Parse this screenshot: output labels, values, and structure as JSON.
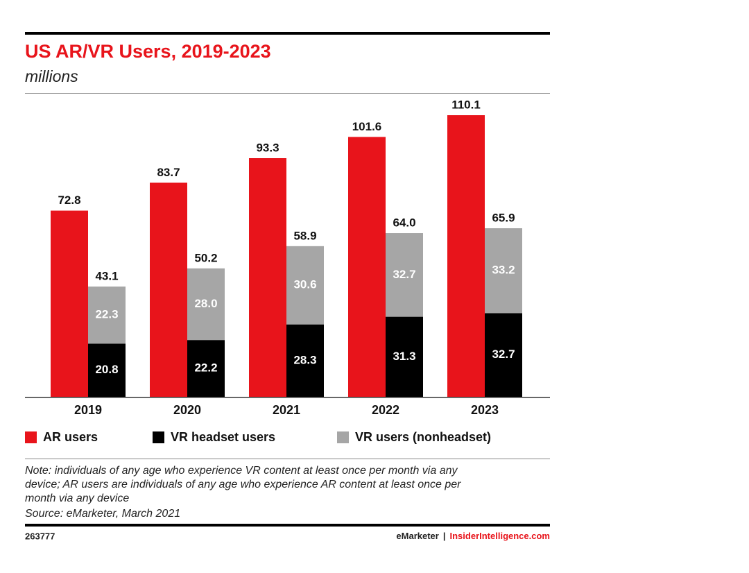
{
  "chart_data": {
    "type": "bar",
    "title": "US AR/VR Users, 2019-2023",
    "subtitle": "millions",
    "categories": [
      "2019",
      "2020",
      "2021",
      "2022",
      "2023"
    ],
    "series": [
      {
        "name": "AR users",
        "color": "#e8141b",
        "values": [
          72.8,
          83.7,
          93.3,
          101.6,
          110.1
        ]
      },
      {
        "name": "VR headset users",
        "color": "#000000",
        "stack": "vr",
        "values": [
          20.8,
          22.2,
          28.3,
          31.3,
          32.7
        ]
      },
      {
        "name": "VR users (nonheadset)",
        "color": "#a6a6a6",
        "stack": "vr",
        "values": [
          22.3,
          28.0,
          30.6,
          32.7,
          33.2
        ],
        "value_labels": [
          "22.3",
          "28.0",
          "30.6",
          "32.7",
          "33.2"
        ]
      }
    ],
    "stack_total_labels": [
      "43.1",
      "50.2",
      "58.9",
      "64.0",
      "65.9"
    ],
    "ylim": [
      0,
      115
    ],
    "note": [
      "Note: individuals of any age who experience VR content at least once per month via any",
      "device; AR users are individuals of any age who experience AR content at least once per",
      "month via any device"
    ],
    "source": "Source: eMarketer, March 2021",
    "chart_id": "263777",
    "footer": {
      "brand": "eMarketer",
      "separator": "|",
      "site": "InsiderIntelligence.com"
    }
  }
}
